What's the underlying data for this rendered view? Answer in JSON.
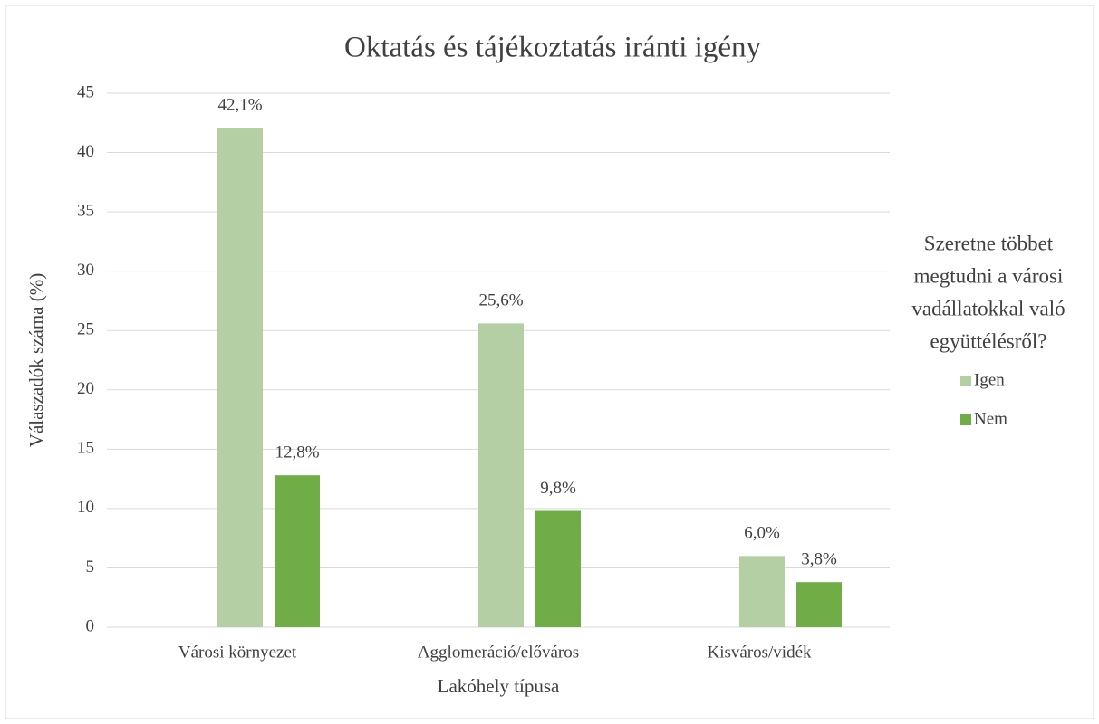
{
  "chart_data": {
    "type": "bar",
    "title": "Oktatás és tájékoztatás iránti igény",
    "x_label": "Lakóhely típusa",
    "y_label": "Válaszadók száma (%)",
    "legend_title": [
      "Szeretne többet",
      "megtudni a városi",
      "vadállatokkal való",
      "együttélésről?"
    ],
    "legend_position": "right",
    "categories": [
      "Városi környezet",
      "Agglomeráció/előváros",
      "Kisváros/vidék"
    ],
    "series": [
      {
        "name": "Igen",
        "color": "#b5cfa5",
        "values": [
          42.1,
          25.6,
          6.0
        ],
        "value_labels": [
          "42,1%",
          "25,6%",
          "6,0%"
        ]
      },
      {
        "name": "Nem",
        "color": "#70ad47",
        "values": [
          12.8,
          9.8,
          3.8
        ],
        "value_labels": [
          "12,8%",
          "9,8%",
          "3,8%"
        ]
      }
    ],
    "ylim": [
      0,
      45
    ],
    "yticks": [
      0,
      5,
      10,
      15,
      20,
      25,
      30,
      35,
      40,
      45
    ],
    "grid": true
  }
}
